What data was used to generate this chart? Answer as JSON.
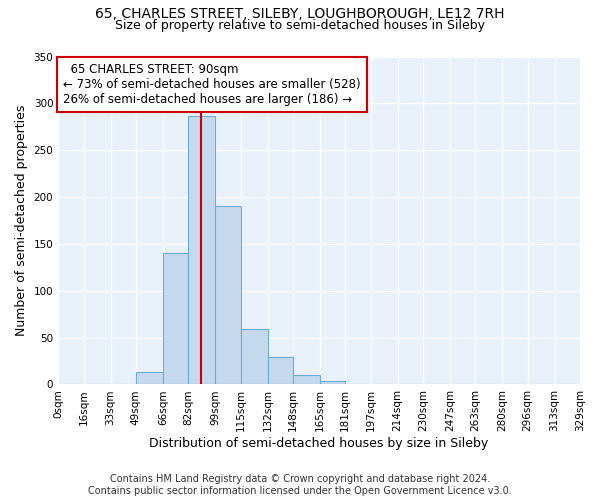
{
  "title": "65, CHARLES STREET, SILEBY, LOUGHBOROUGH, LE12 7RH",
  "subtitle": "Size of property relative to semi-detached houses in Sileby",
  "xlabel": "Distribution of semi-detached houses by size in Sileby",
  "ylabel": "Number of semi-detached properties",
  "bin_edges": [
    0,
    16,
    33,
    49,
    66,
    82,
    99,
    115,
    132,
    148,
    165,
    181,
    197,
    214,
    230,
    247,
    263,
    280,
    296,
    313,
    329
  ],
  "bin_counts": [
    0,
    0,
    0,
    13,
    140,
    287,
    190,
    59,
    29,
    10,
    4,
    1,
    0,
    0,
    0,
    0,
    0,
    0,
    0,
    1
  ],
  "bar_color": "#c5d9ee",
  "bar_edge_color": "#6aaed6",
  "property_size": 90,
  "vline_color": "#cc0000",
  "annotation_title": "65 CHARLES STREET: 90sqm",
  "annotation_line1": "← 73% of semi-detached houses are smaller (528)",
  "annotation_line2": "26% of semi-detached houses are larger (186) →",
  "annotation_box_color": "#ffffff",
  "annotation_box_edge": "#cc0000",
  "tick_labels": [
    "0sqm",
    "16sqm",
    "33sqm",
    "49sqm",
    "66sqm",
    "82sqm",
    "99sqm",
    "115sqm",
    "132sqm",
    "148sqm",
    "165sqm",
    "181sqm",
    "197sqm",
    "214sqm",
    "230sqm",
    "247sqm",
    "263sqm",
    "280sqm",
    "296sqm",
    "313sqm",
    "329sqm"
  ],
  "ylim": [
    0,
    350
  ],
  "yticks": [
    0,
    50,
    100,
    150,
    200,
    250,
    300,
    350
  ],
  "footer_line1": "Contains HM Land Registry data © Crown copyright and database right 2024.",
  "footer_line2": "Contains public sector information licensed under the Open Government Licence v3.0.",
  "bg_color": "#e8f0fa",
  "title_fontsize": 10,
  "subtitle_fontsize": 9,
  "axis_label_fontsize": 9,
  "tick_fontsize": 7.5,
  "footer_fontsize": 7,
  "annotation_fontsize": 8.5
}
